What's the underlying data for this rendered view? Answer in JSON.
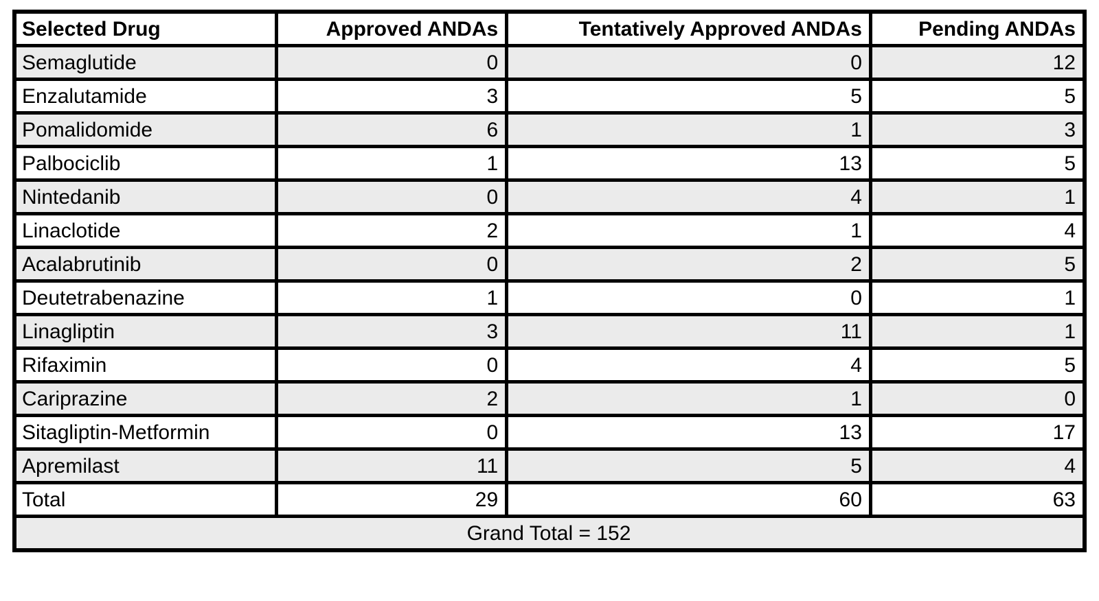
{
  "table": {
    "columns": [
      {
        "label": "Selected Drug",
        "align": "left"
      },
      {
        "label": "Approved ANDAs",
        "align": "right"
      },
      {
        "label": "Tentatively Approved ANDAs",
        "align": "right"
      },
      {
        "label": "Pending ANDAs",
        "align": "right"
      }
    ],
    "rows": [
      {
        "drug": "Semaglutide",
        "approved": "0",
        "tentatively_approved": "0",
        "pending": "12"
      },
      {
        "drug": "Enzalutamide",
        "approved": "3",
        "tentatively_approved": "5",
        "pending": "5"
      },
      {
        "drug": "Pomalidomide",
        "approved": "6",
        "tentatively_approved": "1",
        "pending": "3"
      },
      {
        "drug": "Palbociclib",
        "approved": "1",
        "tentatively_approved": "13",
        "pending": "5"
      },
      {
        "drug": "Nintedanib",
        "approved": "0",
        "tentatively_approved": "4",
        "pending": "1"
      },
      {
        "drug": "Linaclotide",
        "approved": "2",
        "tentatively_approved": "1",
        "pending": "4"
      },
      {
        "drug": "Acalabrutinib",
        "approved": "0",
        "tentatively_approved": "2",
        "pending": "5"
      },
      {
        "drug": "Deutetrabenazine",
        "approved": "1",
        "tentatively_approved": "0",
        "pending": "1"
      },
      {
        "drug": "Linagliptin",
        "approved": "3",
        "tentatively_approved": "11",
        "pending": "1"
      },
      {
        "drug": "Rifaximin",
        "approved": "0",
        "tentatively_approved": "4",
        "pending": "5"
      },
      {
        "drug": "Cariprazine",
        "approved": "2",
        "tentatively_approved": "1",
        "pending": "0"
      },
      {
        "drug": "Sitagliptin-Metformin",
        "approved": "0",
        "tentatively_approved": "13",
        "pending": "17"
      },
      {
        "drug": "Apremilast",
        "approved": "11",
        "tentatively_approved": "5",
        "pending": "4"
      },
      {
        "drug": "Total",
        "approved": "29",
        "tentatively_approved": "60",
        "pending": "63"
      }
    ],
    "grand_total_label": "Grand Total = 152"
  },
  "colors": {
    "border": "#000000",
    "shaded_row": "#ebebeb",
    "plain_row": "#ffffff",
    "text": "#000000"
  }
}
